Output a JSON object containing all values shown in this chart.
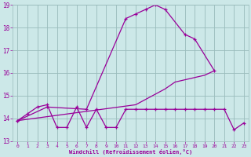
{
  "x": [
    0,
    1,
    2,
    3,
    4,
    5,
    6,
    7,
    8,
    9,
    10,
    11,
    12,
    13,
    14,
    15,
    16,
    17,
    18,
    19,
    20,
    21,
    22,
    23
  ],
  "line1_y": [
    13.9,
    null,
    null,
    14.5,
    null,
    null,
    null,
    14.4,
    null,
    null,
    null,
    18.4,
    18.6,
    18.8,
    19.0,
    18.8,
    null,
    17.7,
    17.5,
    null,
    16.1,
    null,
    null,
    null
  ],
  "line2_y": [
    13.9,
    null,
    null,
    null,
    null,
    null,
    null,
    null,
    null,
    null,
    null,
    null,
    14.6,
    null,
    null,
    15.3,
    15.6,
    null,
    null,
    15.9,
    16.1,
    null,
    null,
    null
  ],
  "line3_y": [
    13.9,
    14.2,
    14.5,
    14.6,
    13.6,
    13.6,
    14.5,
    13.6,
    14.4,
    13.6,
    13.6,
    14.4,
    14.4,
    14.4,
    14.4,
    14.4,
    14.4,
    14.4,
    14.4,
    14.4,
    14.4,
    14.4,
    13.5,
    13.8
  ],
  "color": "#990099",
  "bg_color": "#cce8e8",
  "grid_color": "#99bbbb",
  "xlabel": "Windchill (Refroidissement éolien,°C)",
  "ylim": [
    13,
    19
  ],
  "xlim": [
    -0.5,
    23.5
  ],
  "yticks": [
    13,
    14,
    15,
    16,
    17,
    18,
    19
  ],
  "xticks": [
    0,
    1,
    2,
    3,
    4,
    5,
    6,
    7,
    8,
    9,
    10,
    11,
    12,
    13,
    14,
    15,
    16,
    17,
    18,
    19,
    20,
    21,
    22,
    23
  ]
}
